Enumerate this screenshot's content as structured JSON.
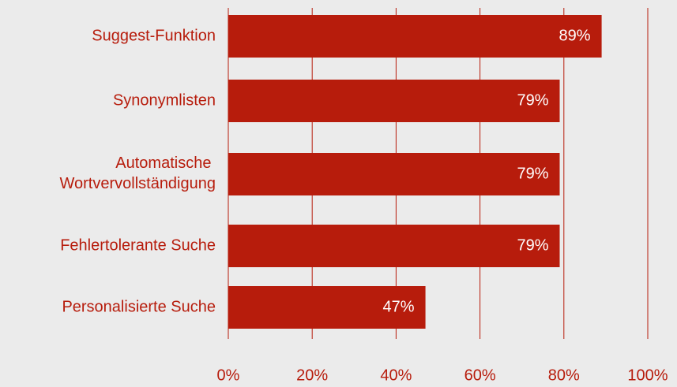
{
  "chart_data": {
    "type": "bar",
    "orientation": "horizontal",
    "categories": [
      "Suggest-Funktion",
      "Synonymlisten",
      "Automatische Wortvervollständigung",
      "Fehlertolerante Suche",
      "Personalisierte Suche"
    ],
    "values": [
      89,
      79,
      79,
      79,
      47
    ],
    "value_labels": [
      "89%",
      "79%",
      "79%",
      "79%",
      "47%"
    ],
    "color": "#b71c0c",
    "xlim": [
      0,
      100
    ],
    "xticks": [
      {
        "value": 0,
        "label": "0%"
      },
      {
        "value": 20,
        "label": "20%"
      },
      {
        "value": 40,
        "label": "40%"
      },
      {
        "value": 60,
        "label": "60%"
      },
      {
        "value": 80,
        "label": "80%"
      },
      {
        "value": 100,
        "label": "100%"
      }
    ],
    "grid": true
  }
}
